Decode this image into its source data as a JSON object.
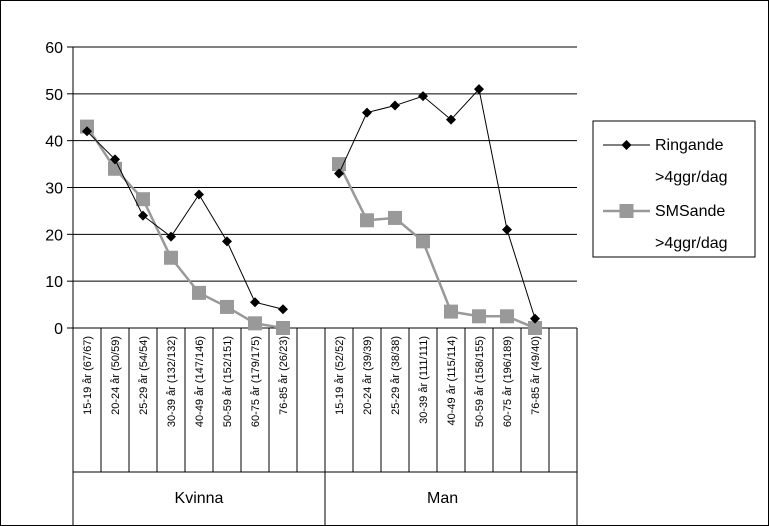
{
  "chart_data": {
    "type": "line",
    "ylim": [
      0,
      60
    ],
    "yticks": [
      "0",
      "10",
      "20",
      "30",
      "40",
      "50",
      "60"
    ],
    "grid": true,
    "legend_position": "right",
    "groups": [
      {
        "label": "Kvinna",
        "categories": [
          "15-19 år (67/67)",
          "20-24 år (50/59)",
          "25-29 år (54/54)",
          "30-39 år (132/132)",
          "40-49 år (147/146)",
          "50-59 år (152/151)",
          "60-75 år (179/175)",
          "76-85 år (26/23)"
        ]
      },
      {
        "label": "Man",
        "categories": [
          "15-19 år (52/52)",
          "20-24 år (39/39)",
          "25-29 år (38/38)",
          "30-39 år (111/111)",
          "40-49 år (115/114)",
          "50-59 år (158/155)",
          "60-75 år (196/189)",
          "76-85 år (49/40)"
        ]
      }
    ],
    "series": [
      {
        "name": "Ringande >4ggr/dag",
        "legend_lines": [
          "Ringande",
          ">4ggr/dag"
        ],
        "color": "#000000",
        "marker": "diamond",
        "values": [
          [
            42,
            36,
            24,
            19.5,
            28.5,
            18.5,
            5.5,
            4
          ],
          [
            33,
            46,
            47.5,
            49.5,
            44.5,
            51,
            21,
            2
          ]
        ]
      },
      {
        "name": "SMSande >4ggr/dag",
        "legend_lines": [
          "SMSande",
          ">4ggr/dag"
        ],
        "color": "#999999",
        "marker": "square",
        "values": [
          [
            43,
            34,
            27.5,
            15,
            7.5,
            4.5,
            1,
            0
          ],
          [
            35,
            23,
            23.5,
            18.5,
            3.5,
            2.5,
            2.5,
            0
          ]
        ]
      }
    ]
  }
}
